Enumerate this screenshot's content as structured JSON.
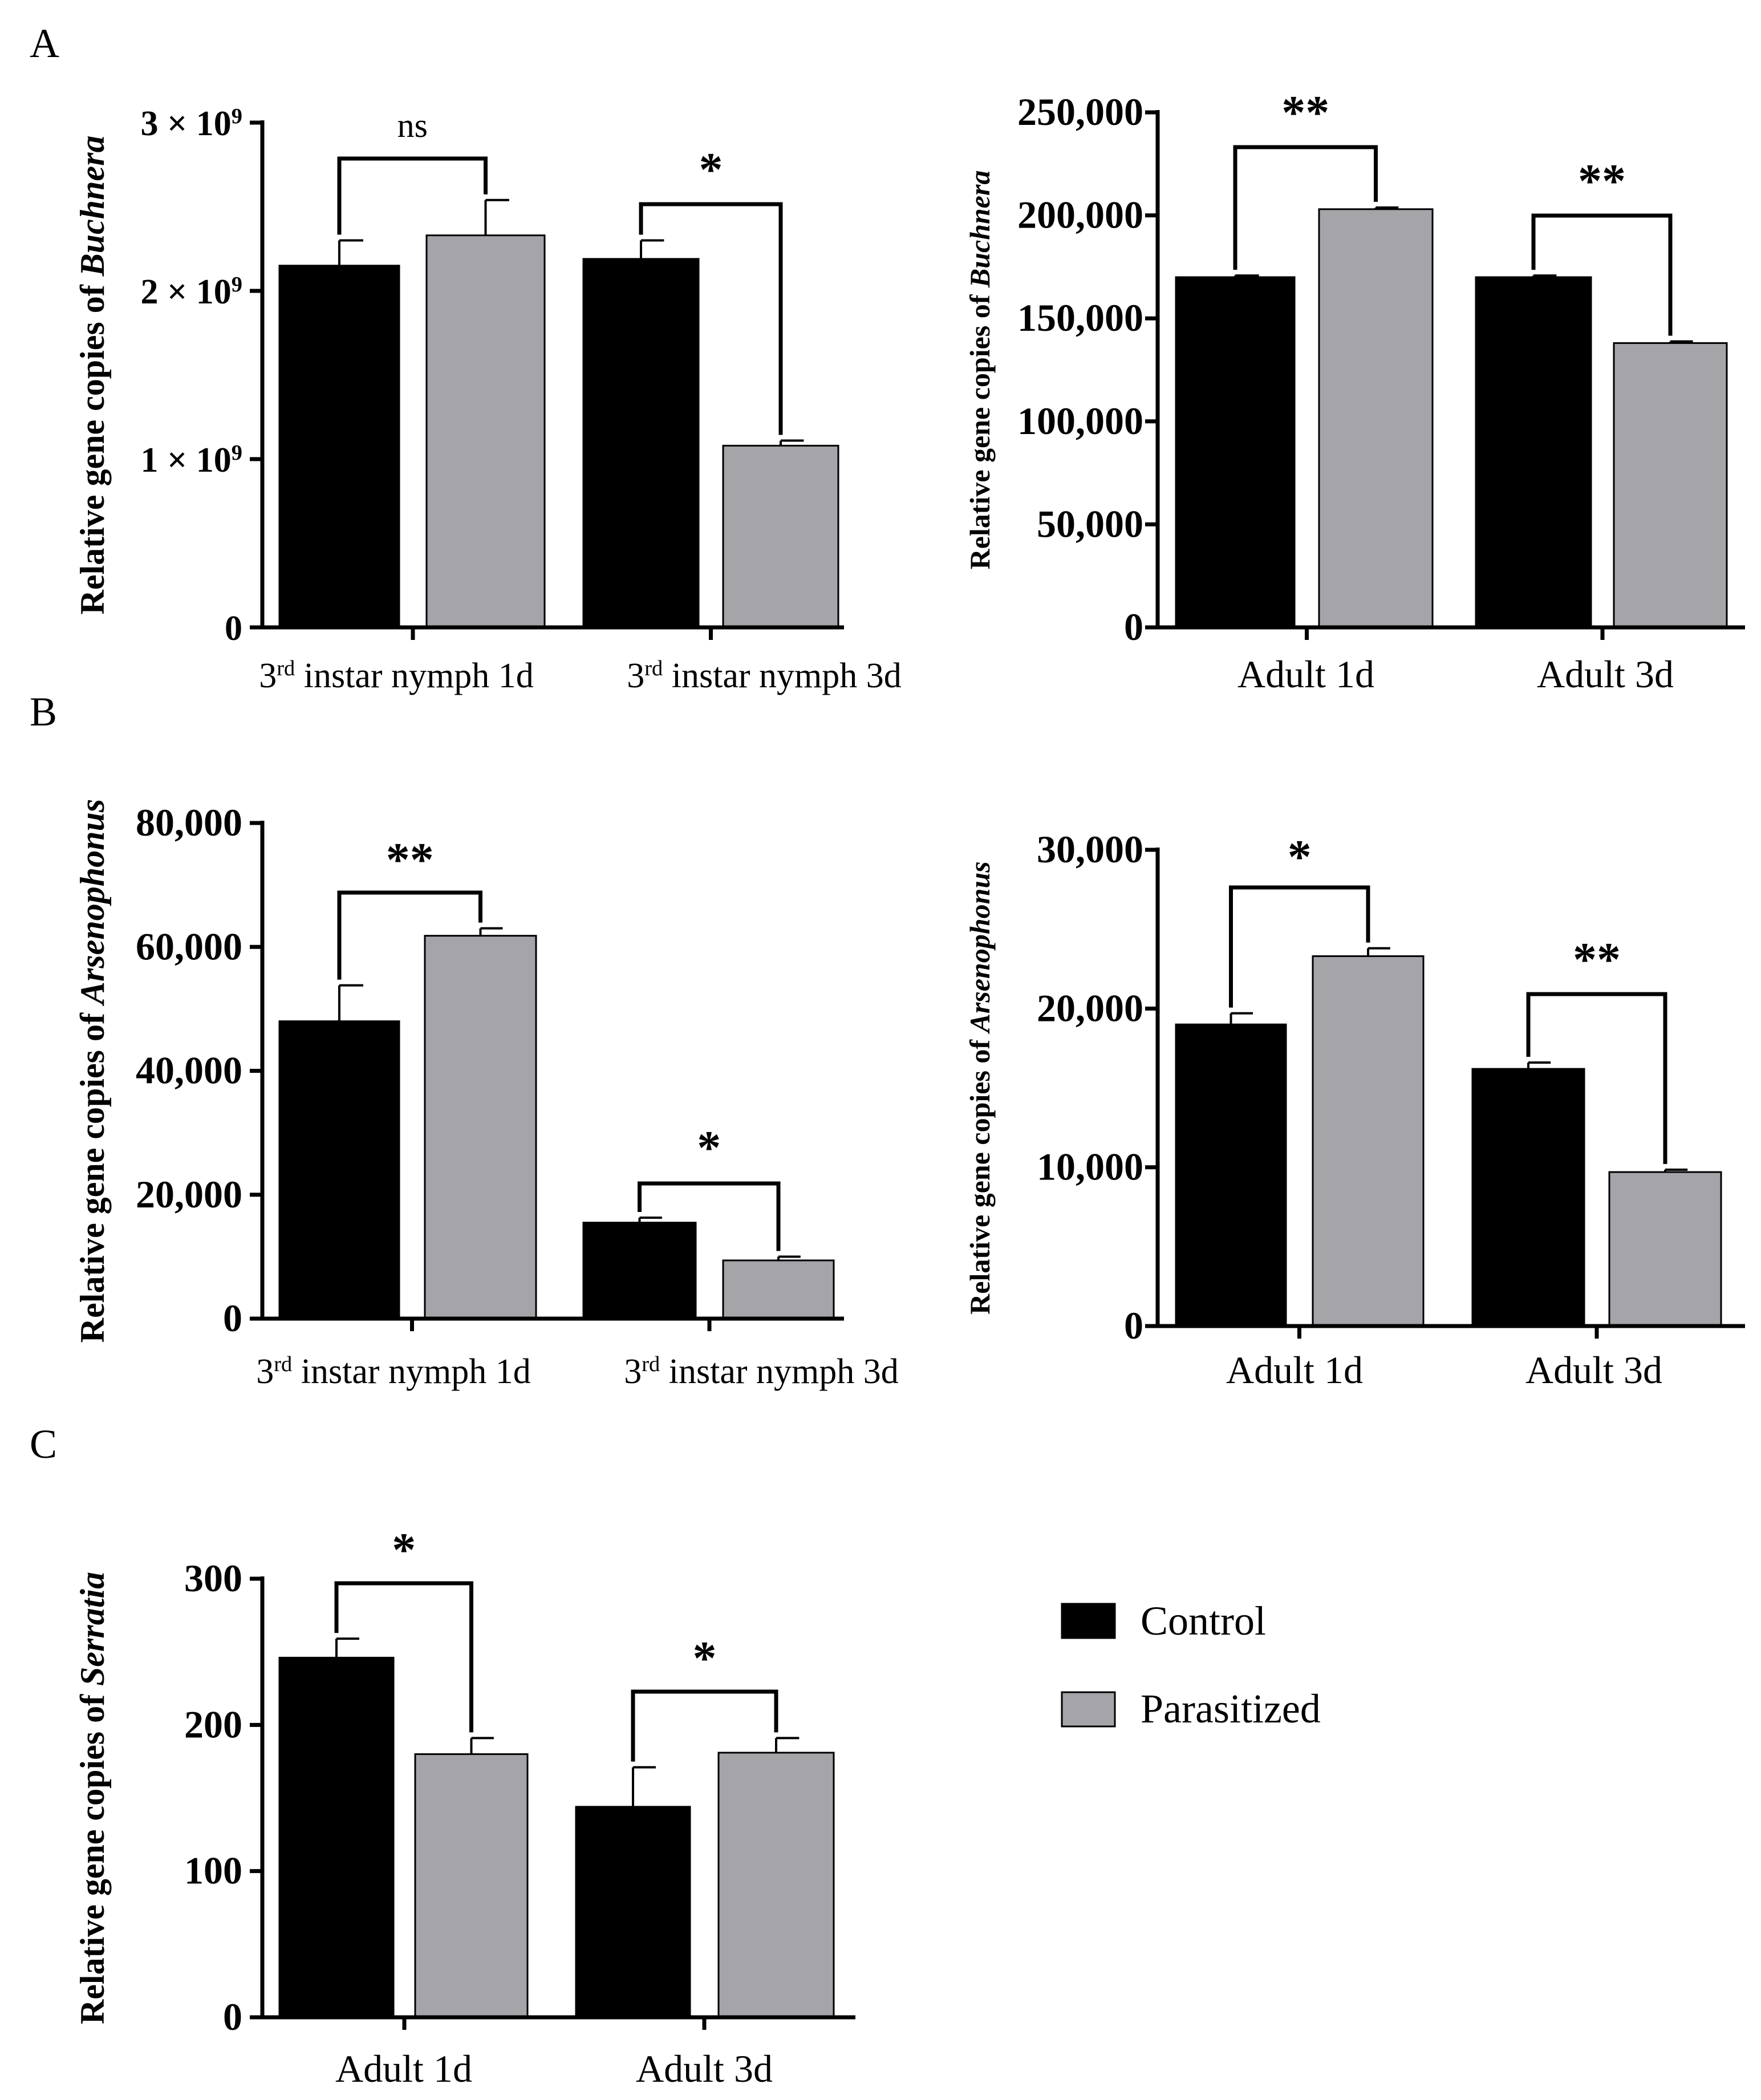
{
  "panel_labels": {
    "a": "A",
    "b": "B",
    "c": "C"
  },
  "colors": {
    "control": "#000000",
    "parasitized": "#a5a4a9",
    "axis": "#000000"
  },
  "legend": {
    "control": "Control",
    "parasitized": "Parasitized"
  },
  "chart_data": [
    {
      "id": "A-left",
      "type": "bar",
      "ylabel_prefix": "Relative gene copies of ",
      "ylabel_italic": "Buchnera",
      "categories": [
        {
          "base": "3",
          "sup": "rd",
          "rest": " instar nymph 1d"
        },
        {
          "base": "3",
          "sup": "rd",
          "rest": " instar nymph 3d"
        }
      ],
      "series": [
        {
          "name": "Control",
          "values": [
            2150000000,
            2190000000
          ],
          "errors": [
            150000000,
            110000000
          ]
        },
        {
          "name": "Parasitized",
          "values": [
            2330000000,
            1080000000
          ],
          "errors": [
            210000000,
            30000000
          ]
        }
      ],
      "ylim": [
        0,
        3000000000
      ],
      "ticks": [
        0,
        1000000000,
        2000000000,
        3000000000
      ],
      "tick_labels": [
        {
          "base": "0"
        },
        {
          "base": "1 × 10",
          "sup": "9"
        },
        {
          "base": "2 × 10",
          "sup": "9"
        },
        {
          "base": "3 × 10",
          "sup": "9"
        }
      ],
      "significance": [
        "ns",
        "*"
      ]
    },
    {
      "id": "A-right",
      "type": "bar",
      "ylabel_prefix": "Relative gene copies of ",
      "ylabel_italic": "Buchnera",
      "categories": [
        {
          "base": "Adult 1d"
        },
        {
          "base": "Adult 3d"
        }
      ],
      "series": [
        {
          "name": "Control",
          "values": [
            170000,
            170000
          ],
          "errors": [
            800,
            800
          ]
        },
        {
          "name": "Parasitized",
          "values": [
            203000,
            138000
          ],
          "errors": [
            800,
            800
          ]
        }
      ],
      "ylim": [
        0,
        250000
      ],
      "ticks": [
        0,
        50000,
        100000,
        150000,
        200000,
        250000
      ],
      "tick_labels": [
        {
          "base": "0"
        },
        {
          "base": "50,000"
        },
        {
          "base": "100,000"
        },
        {
          "base": "150,000"
        },
        {
          "base": "200,000"
        },
        {
          "base": "250,000"
        }
      ],
      "significance": [
        "**",
        "**"
      ]
    },
    {
      "id": "B-left",
      "type": "bar",
      "ylabel_prefix": "Relative gene copies of ",
      "ylabel_italic": "Arsenophonus",
      "categories": [
        {
          "base": "3",
          "sup": "rd",
          "rest": " instar nymph 1d"
        },
        {
          "base": "3",
          "sup": "rd",
          "rest": " instar nymph 3d"
        }
      ],
      "series": [
        {
          "name": "Control",
          "values": [
            48000,
            15500
          ],
          "errors": [
            5800,
            800
          ]
        },
        {
          "name": "Parasitized",
          "values": [
            61800,
            9400
          ],
          "errors": [
            1200,
            600
          ]
        }
      ],
      "ylim": [
        0,
        80000
      ],
      "ticks": [
        0,
        20000,
        40000,
        60000,
        80000
      ],
      "tick_labels": [
        {
          "base": "0"
        },
        {
          "base": "20,000"
        },
        {
          "base": "40,000"
        },
        {
          "base": "60,000"
        },
        {
          "base": "80,000"
        }
      ],
      "significance": [
        "**",
        "*"
      ]
    },
    {
      "id": "B-right",
      "type": "bar",
      "ylabel_prefix": "Relative gene copies of ",
      "ylabel_italic": "Arsenophonus",
      "categories": [
        {
          "base": "Adult 1d"
        },
        {
          "base": "Adult 3d"
        }
      ],
      "series": [
        {
          "name": "Control",
          "values": [
            19000,
            16200
          ],
          "errors": [
            700,
            400
          ]
        },
        {
          "name": "Parasitized",
          "values": [
            23300,
            9700
          ],
          "errors": [
            500,
            150
          ]
        }
      ],
      "ylim": [
        0,
        30000
      ],
      "ticks": [
        0,
        10000,
        20000,
        30000
      ],
      "tick_labels": [
        {
          "base": "0"
        },
        {
          "base": "10,000"
        },
        {
          "base": "20,000"
        },
        {
          "base": "30,000"
        }
      ],
      "significance": [
        "*",
        "**"
      ]
    },
    {
      "id": "C",
      "type": "bar",
      "ylabel_prefix": "Relative gene copies of ",
      "ylabel_italic": "Serratia",
      "categories": [
        {
          "base": "Adult 1d"
        },
        {
          "base": "Adult 3d"
        }
      ],
      "series": [
        {
          "name": "Control",
          "values": [
            246,
            144
          ],
          "errors": [
            13,
            27
          ]
        },
        {
          "name": "Parasitized",
          "values": [
            180,
            181
          ],
          "errors": [
            11,
            10
          ]
        }
      ],
      "ylim": [
        0,
        300
      ],
      "ticks": [
        0,
        100,
        200,
        300
      ],
      "tick_labels": [
        {
          "base": "0"
        },
        {
          "base": "100"
        },
        {
          "base": "200"
        },
        {
          "base": "300"
        }
      ],
      "significance": [
        "*",
        "*"
      ]
    }
  ]
}
